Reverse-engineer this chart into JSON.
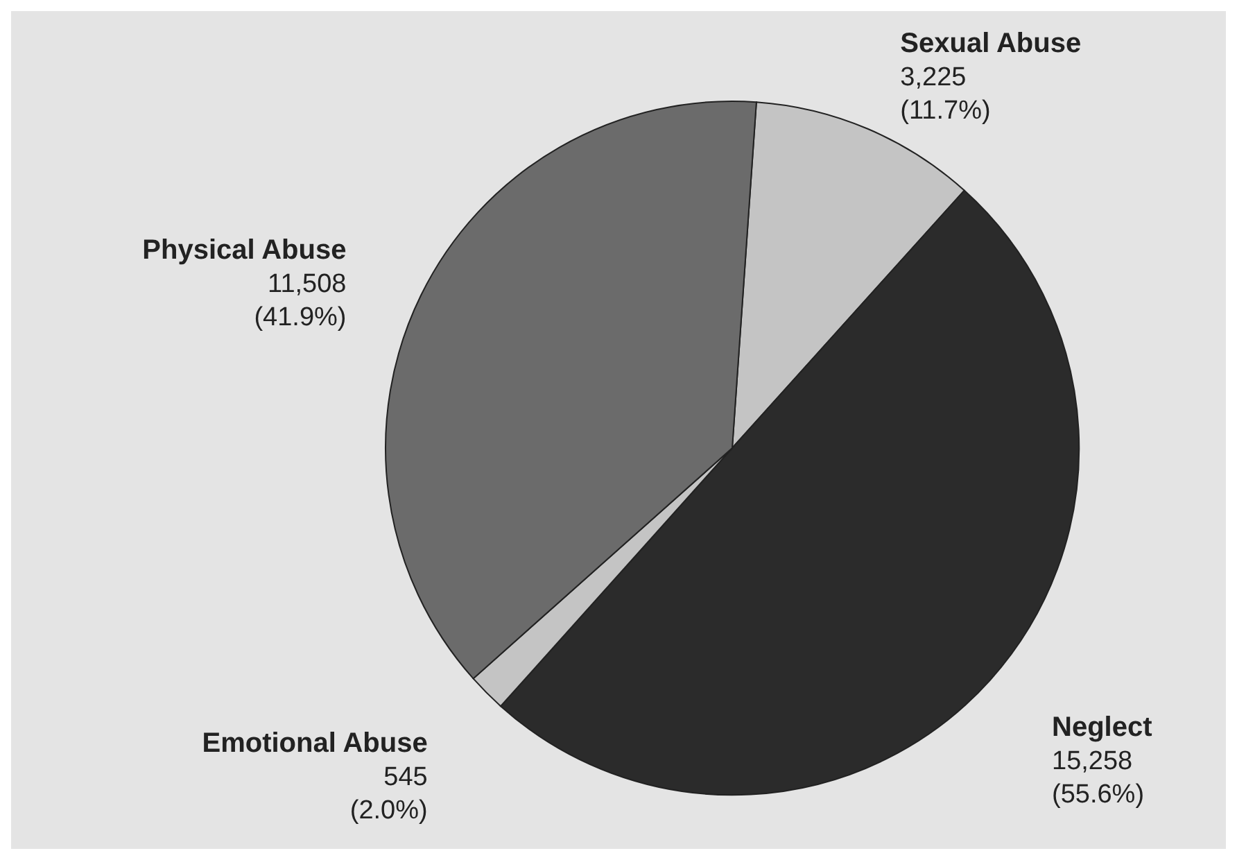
{
  "chart_data": {
    "type": "pie",
    "categories": [
      "Sexual Abuse",
      "Neglect",
      "Emotional Abuse",
      "Physical Abuse"
    ],
    "values": [
      3225,
      15258,
      545,
      11508
    ],
    "value_labels": [
      "3,225 (11.7%)",
      "15,258 (55.6%)",
      "545 (2.0%)",
      "11,508 (41.9%)"
    ],
    "colors": [
      "#c4c4c4",
      "#2b2b2b",
      "#c4c4c4",
      "#6b6b6b"
    ]
  }
}
